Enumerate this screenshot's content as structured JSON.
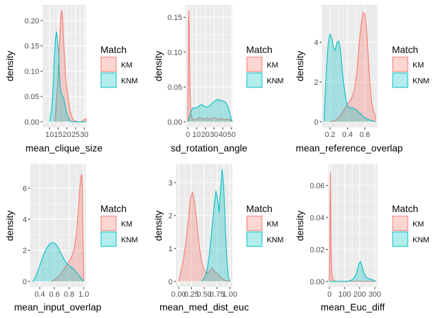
{
  "legend_title": "Match",
  "legend_keys": [
    {
      "label": "KM",
      "fill": "#f8766d",
      "line": "#f8766d"
    },
    {
      "label": "KNM",
      "fill": "#00bfc4",
      "line": "#00bfc4"
    }
  ],
  "colors": {
    "panel_bg": "#ebebeb",
    "grid": "#ffffff",
    "axis_text": "#4d4d4d",
    "KM": "#f8766d",
    "KNM": "#00bfc4"
  },
  "chart_data": [
    {
      "type": "area",
      "xlabel": "mean_clique_size",
      "ylabel": "density",
      "xlim": [
        6.0,
        31.0
      ],
      "ylim": [
        -0.011,
        0.231
      ],
      "xticks": [
        10,
        15,
        20,
        25,
        30
      ],
      "xtick_labels": [
        "10",
        "15",
        "20",
        "25",
        "30"
      ],
      "yticks": [
        0.0,
        0.05,
        0.1,
        0.15,
        0.2
      ],
      "ytick_labels": [
        "0.00",
        "0.05",
        "0.10",
        "0.15",
        "0.20"
      ],
      "grid": true,
      "series": [
        {
          "name": "KM",
          "x": [
            13.0,
            13.8,
            14.6,
            15.3,
            16.0,
            16.6,
            17.1,
            17.6,
            18.1,
            18.7,
            19.4,
            20.2,
            21.0,
            22.0,
            23.0,
            24.0,
            26.0,
            28.0,
            30.0,
            30.6,
            31.0
          ],
          "y": [
            0.0,
            0.03,
            0.07,
            0.12,
            0.175,
            0.21,
            0.22,
            0.2,
            0.16,
            0.12,
            0.085,
            0.06,
            0.04,
            0.02,
            0.008,
            0.003,
            0.0,
            0.0,
            0.004,
            0.006,
            0.006
          ]
        },
        {
          "name": "KNM",
          "x": [
            10.0,
            10.5,
            11.0,
            11.6,
            12.2,
            12.8,
            13.4,
            14.0,
            14.6,
            15.2,
            15.6,
            16.0,
            16.5,
            17.0,
            17.6,
            18.2,
            18.8,
            19.4,
            20.0,
            21.0,
            22.0,
            23.0,
            25.0,
            28.0,
            31.0
          ],
          "y": [
            0.0,
            0.012,
            0.02,
            0.04,
            0.08,
            0.13,
            0.165,
            0.178,
            0.16,
            0.14,
            0.1,
            0.075,
            0.06,
            0.055,
            0.05,
            0.045,
            0.035,
            0.025,
            0.015,
            0.006,
            0.002,
            0.0,
            0.0,
            0.0,
            0.0
          ]
        }
      ]
    },
    {
      "type": "area",
      "xlabel": "sd_rotation_angle",
      "ylabel": "density",
      "xlim": [
        -2.5,
        51.0
      ],
      "ylim": [
        -0.008,
        0.168
      ],
      "xticks": [
        0,
        10,
        20,
        30,
        40,
        50
      ],
      "xtick_labels": [
        "0",
        "10",
        "20",
        "30",
        "40",
        "50"
      ],
      "yticks": [
        0.0,
        0.05,
        0.1,
        0.15
      ],
      "ytick_labels": [
        "0.00",
        "0.05",
        "0.10",
        "0.15"
      ],
      "grid": true,
      "series": [
        {
          "name": "KM",
          "x": [
            0.0,
            0.4,
            0.8,
            1.2,
            1.6,
            2.0,
            2.6,
            3.4,
            4.5,
            6.0,
            8.0,
            10.0,
            14.0,
            18.0,
            22.0,
            26.0,
            30.0,
            34.0,
            38.0,
            42.0,
            46.0,
            50.0
          ],
          "y": [
            0.02,
            0.08,
            0.15,
            0.16,
            0.13,
            0.08,
            0.04,
            0.015,
            0.006,
            0.003,
            0.003,
            0.004,
            0.006,
            0.004,
            0.005,
            0.004,
            0.006,
            0.003,
            0.005,
            0.003,
            0.004,
            0.002
          ]
        },
        {
          "name": "KNM",
          "x": [
            0.0,
            2.0,
            4.0,
            6.0,
            8.0,
            10.0,
            13.0,
            16.0,
            19.0,
            22.0,
            25.0,
            28.0,
            31.0,
            34.0,
            37.0,
            40.0,
            43.0,
            46.0,
            49.0,
            50.5
          ],
          "y": [
            0.0,
            0.008,
            0.016,
            0.02,
            0.02,
            0.02,
            0.023,
            0.025,
            0.022,
            0.021,
            0.023,
            0.027,
            0.03,
            0.032,
            0.031,
            0.03,
            0.028,
            0.022,
            0.008,
            0.002
          ]
        }
      ]
    },
    {
      "type": "area",
      "xlabel": "mean_reference_overlap",
      "ylabel": "density",
      "xlim": [
        0.105,
        0.745
      ],
      "ylim": [
        -0.28,
        5.88
      ],
      "xticks": [
        0.2,
        0.4,
        0.6
      ],
      "xtick_labels": [
        "0.2",
        "0.4",
        "0.6"
      ],
      "yticks": [
        0,
        2,
        4
      ],
      "ytick_labels": [
        "0",
        "2",
        "4"
      ],
      "grid": true,
      "series": [
        {
          "name": "KM",
          "x": [
            0.2,
            0.25,
            0.3,
            0.34,
            0.38,
            0.42,
            0.45,
            0.48,
            0.51,
            0.54,
            0.56,
            0.58,
            0.6,
            0.62,
            0.64,
            0.66,
            0.68,
            0.7,
            0.72
          ],
          "y": [
            0.0,
            0.05,
            0.2,
            0.45,
            0.75,
            1.0,
            1.2,
            1.6,
            2.6,
            4.2,
            5.0,
            5.5,
            5.4,
            4.6,
            3.2,
            1.8,
            0.9,
            0.5,
            0.3
          ]
        },
        {
          "name": "KNM",
          "x": [
            0.13,
            0.14,
            0.16,
            0.18,
            0.2,
            0.22,
            0.24,
            0.26,
            0.28,
            0.3,
            0.32,
            0.34,
            0.36,
            0.38,
            0.4,
            0.43,
            0.46,
            0.5,
            0.55,
            0.6,
            0.65,
            0.7,
            0.72
          ],
          "y": [
            0.0,
            1.0,
            2.8,
            4.0,
            4.4,
            4.2,
            3.7,
            3.6,
            4.0,
            4.05,
            3.6,
            2.6,
            1.8,
            1.2,
            0.8,
            0.7,
            0.7,
            0.6,
            0.4,
            0.2,
            0.1,
            0.03,
            0.0
          ]
        }
      ]
    },
    {
      "type": "area",
      "xlabel": "mean_input_overlap",
      "ylabel": "density",
      "xlim": [
        0.27,
        1.03
      ],
      "ylim": [
        -0.36,
        7.56
      ],
      "xticks": [
        0.4,
        0.6,
        0.8,
        1.0
      ],
      "xtick_labels": [
        "0.4",
        "0.6",
        "0.8",
        "1.0"
      ],
      "yticks": [
        0,
        2,
        4,
        6
      ],
      "ytick_labels": [
        "0",
        "2",
        "4",
        "6"
      ],
      "grid": true,
      "series": [
        {
          "name": "KM",
          "x": [
            0.56,
            0.6,
            0.64,
            0.68,
            0.72,
            0.76,
            0.8,
            0.84,
            0.87,
            0.9,
            0.93,
            0.95,
            0.97,
            0.98,
            0.99,
            1.0
          ],
          "y": [
            0.0,
            0.1,
            0.25,
            0.45,
            0.75,
            1.0,
            1.3,
            1.65,
            2.1,
            3.0,
            4.8,
            6.2,
            6.9,
            6.5,
            3.0,
            0.0
          ]
        },
        {
          "name": "KNM",
          "x": [
            0.3,
            0.34,
            0.38,
            0.42,
            0.46,
            0.5,
            0.54,
            0.58,
            0.62,
            0.66,
            0.7,
            0.74,
            0.78,
            0.82,
            0.86,
            0.9,
            0.94,
            0.98,
            1.0
          ],
          "y": [
            0.0,
            0.25,
            0.75,
            1.3,
            1.8,
            2.2,
            2.45,
            2.5,
            2.4,
            2.1,
            1.7,
            1.35,
            1.1,
            0.95,
            0.8,
            0.6,
            0.35,
            0.1,
            0.0
          ]
        }
      ]
    },
    {
      "type": "area",
      "xlabel": "mean_med_dist_euc",
      "ylabel": "density",
      "xlim": [
        -0.05,
        1.05
      ],
      "ylim": [
        -0.17,
        3.57
      ],
      "xticks": [
        0.0,
        0.25,
        0.5,
        0.75,
        1.0
      ],
      "xtick_labels": [
        "0.00",
        "0.25",
        "0.50",
        "0.75",
        "1.00"
      ],
      "yticks": [
        0,
        1,
        2,
        3
      ],
      "ytick_labels": [
        "0",
        "1",
        "2",
        "3"
      ],
      "grid": true,
      "series": [
        {
          "name": "KM",
          "x": [
            0.0,
            0.05,
            0.1,
            0.15,
            0.2,
            0.23,
            0.27,
            0.3,
            0.35,
            0.4,
            0.45,
            0.5,
            0.55,
            0.6,
            0.65,
            0.7,
            0.75,
            0.8,
            0.85,
            0.9,
            0.95,
            1.0
          ],
          "y": [
            0.0,
            0.3,
            0.7,
            1.3,
            2.0,
            2.55,
            2.7,
            2.5,
            1.9,
            1.1,
            0.6,
            0.35,
            0.25,
            0.3,
            0.4,
            0.3,
            0.25,
            0.15,
            0.08,
            0.04,
            0.02,
            0.0
          ]
        },
        {
          "name": "KNM",
          "x": [
            0.45,
            0.5,
            0.55,
            0.6,
            0.65,
            0.7,
            0.73,
            0.76,
            0.79,
            0.82,
            0.85,
            0.88,
            0.91,
            0.94,
            0.97,
            1.0
          ],
          "y": [
            0.0,
            0.1,
            0.3,
            0.8,
            1.6,
            2.4,
            2.75,
            2.5,
            2.1,
            2.8,
            3.4,
            2.9,
            1.7,
            0.7,
            0.15,
            0.0
          ]
        }
      ]
    },
    {
      "type": "area",
      "xlabel": "mean_Euc_diff",
      "ylabel": "density",
      "xlim": [
        -10,
        318
      ],
      "ylim": [
        -0.0035,
        0.0735
      ],
      "xticks": [
        0,
        100,
        200,
        300
      ],
      "xtick_labels": [
        "0",
        "100",
        "200",
        "300"
      ],
      "yticks": [
        0.0,
        0.02,
        0.04,
        0.06
      ],
      "ytick_labels": [
        "0.00",
        "0.02",
        "0.04",
        "0.06"
      ],
      "grid": true,
      "series": [
        {
          "name": "KM",
          "x": [
            0,
            2,
            4,
            6,
            8,
            10,
            13,
            16,
            20,
            26,
            35,
            50,
            100,
            150,
            200,
            250,
            300
          ],
          "y": [
            0.0,
            0.02,
            0.05,
            0.068,
            0.05,
            0.025,
            0.01,
            0.004,
            0.002,
            0.0008,
            0.0003,
            0.0001,
            0.0001,
            0.0001,
            0.0001,
            0.0001,
            0.0
          ]
        },
        {
          "name": "KNM",
          "x": [
            0,
            30,
            60,
            90,
            120,
            150,
            170,
            185,
            195,
            205,
            215,
            225,
            240,
            255,
            270,
            285,
            300,
            310
          ],
          "y": [
            0.0,
            0.0,
            0.0,
            0.0,
            0.0,
            0.001,
            0.003,
            0.007,
            0.011,
            0.0125,
            0.01,
            0.006,
            0.003,
            0.002,
            0.0015,
            0.001,
            0.0005,
            0.0
          ]
        }
      ]
    }
  ]
}
